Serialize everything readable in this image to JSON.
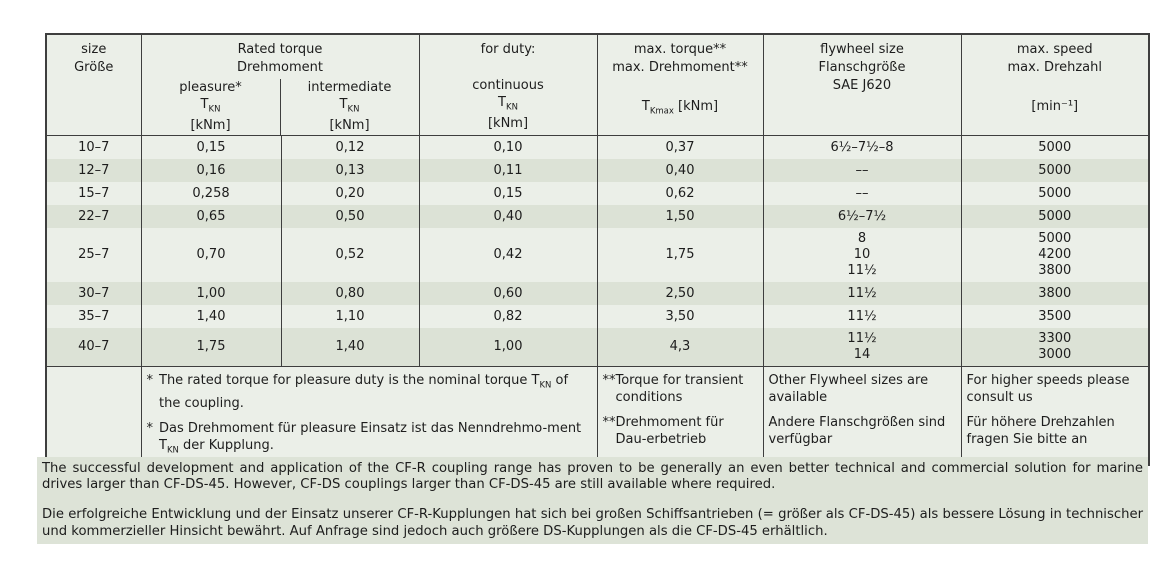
{
  "colors": {
    "row_light": "#ebefe8",
    "row_dark": "#dce2d6",
    "border": "#3e3e3e",
    "note_bg": "#dde3d7",
    "text": "#1d1d1d"
  },
  "header": {
    "size_line1": "size",
    "size_line2": "Größe",
    "rated_line1": "Rated torque",
    "rated_line2": "Drehmoment",
    "duty_line1": "for duty:",
    "col_pleasure_label": "pleasure*",
    "col_intermediate_label": "intermediate",
    "col_continuous_label": "continuous",
    "symbol_tkn": "T~KN~",
    "unit_knm": "[kNm]",
    "maxtorque_line1": "max. torque**",
    "maxtorque_line2": "max. Drehmoment**",
    "maxtorque_symbol": "T~Kmax~ [kNm]",
    "flywheel_line1": "flywheel size",
    "flywheel_line2": "Flanschgröße",
    "flywheel_line3": "SAE J620",
    "speed_line1": "max. speed",
    "speed_line2": "max. Drehzahl",
    "speed_unit": "[min⁻¹]"
  },
  "rows": [
    {
      "size": "10–7",
      "pleasure": "0,15",
      "intermediate": "0,12",
      "continuous": "0,10",
      "max_torque": "0,37",
      "flywheel": "6½–7½–8",
      "speed": "5000"
    },
    {
      "size": "12–7",
      "pleasure": "0,16",
      "intermediate": "0,13",
      "continuous": "0,11",
      "max_torque": "0,40",
      "flywheel": "––",
      "speed": "5000"
    },
    {
      "size": "15–7",
      "pleasure": "0,258",
      "intermediate": "0,20",
      "continuous": "0,15",
      "max_torque": "0,62",
      "flywheel": "––",
      "speed": "5000"
    },
    {
      "size": "22–7",
      "pleasure": "0,65",
      "intermediate": "0,50",
      "continuous": "0,40",
      "max_torque": "1,50",
      "flywheel": "6½–7½",
      "speed": "5000"
    },
    {
      "size": "25–7",
      "pleasure": "0,70",
      "intermediate": "0,52",
      "continuous": "0,42",
      "max_torque": "1,75",
      "flywheel": [
        "8",
        "10",
        "11½"
      ],
      "speed": [
        "5000",
        "4200",
        "3800"
      ]
    },
    {
      "size": "30–7",
      "pleasure": "1,00",
      "intermediate": "0,80",
      "continuous": "0,60",
      "max_torque": "2,50",
      "flywheel": "11½",
      "speed": "3800"
    },
    {
      "size": "35–7",
      "pleasure": "1,40",
      "intermediate": "1,10",
      "continuous": "0,82",
      "max_torque": "3,50",
      "flywheel": "11½",
      "speed": "3500"
    },
    {
      "size": "40–7",
      "pleasure": "1,75",
      "intermediate": "1,40",
      "continuous": "1,00",
      "max_torque": "4,3",
      "flywheel": [
        "11½",
        "14"
      ],
      "speed": [
        "3300",
        "3000"
      ]
    }
  ],
  "footnotes": {
    "rated_marker": "*",
    "rated_en": "The rated torque for pleasure duty is the nominal torque T~KN~ of the coupling.",
    "rated_de": "Das Drehmoment für pleasure Einsatz ist das Nenndrehmo-ment T~KN~ der Kupplung.",
    "maxtorque_marker": "**",
    "maxtorque_en": "Torque for transient conditions",
    "maxtorque_de": "Drehmoment für Dau-erbetrieb",
    "flywheel_en": "Other Flywheel sizes are available",
    "flywheel_de": "Andere Flanschgrößen sind verfügbar",
    "speed_en": "For higher speeds please consult us",
    "speed_de": "Für höhere Drehzahlen fragen Sie bitte an"
  },
  "paragraphs": {
    "en": "The successful development and application of the CF-R coupling range has proven to be generally an even better technical and commercial solution for marine drives larger than CF-DS-45. However, CF-DS couplings larger than CF-DS-45 are still available where required.",
    "de": "Die erfolgreiche Entwicklung und der Einsatz unserer CF-R-Kupplungen hat sich bei großen Schiffsantrieben (= größer als CF-DS-45) als bessere Lösung in technischer und kommerzieller Hinsicht bewährt. Auf Anfrage sind jedoch auch größere DS-Kupplungen als die CF-DS-45 erhältlich."
  }
}
